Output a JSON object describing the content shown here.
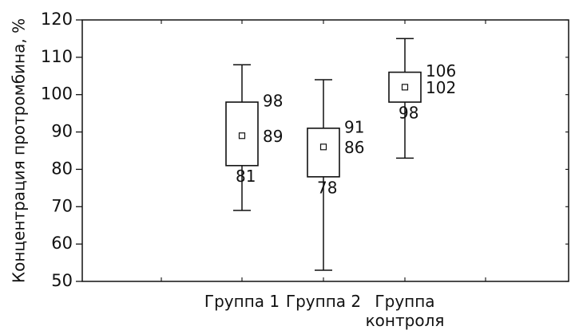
{
  "chart_data": {
    "type": "box",
    "ylabel": "Концентрация протромбина, %",
    "ylim": [
      50,
      120
    ],
    "yticks": [
      50,
      60,
      70,
      80,
      90,
      100,
      110,
      120
    ],
    "grid": false,
    "categories": [
      {
        "label_lines": [
          "Группа 1"
        ],
        "median": 89,
        "q1": 81,
        "q3": 98,
        "whisker_low": 69,
        "whisker_high": 108,
        "labels": {
          "q3": "98",
          "median": "89",
          "q1": "81"
        }
      },
      {
        "label_lines": [
          "Группа 2"
        ],
        "median": 86,
        "q1": 78,
        "q3": 91,
        "whisker_low": 53,
        "whisker_high": 104,
        "labels": {
          "q3": "91",
          "median": "86",
          "q1": "78"
        }
      },
      {
        "label_lines": [
          "Группа",
          "контроля"
        ],
        "median": 102,
        "q1": 98,
        "q3": 106,
        "whisker_low": 83,
        "whisker_high": 115,
        "labels": {
          "q3": "106",
          "median": "102",
          "q1": "98"
        }
      }
    ]
  }
}
